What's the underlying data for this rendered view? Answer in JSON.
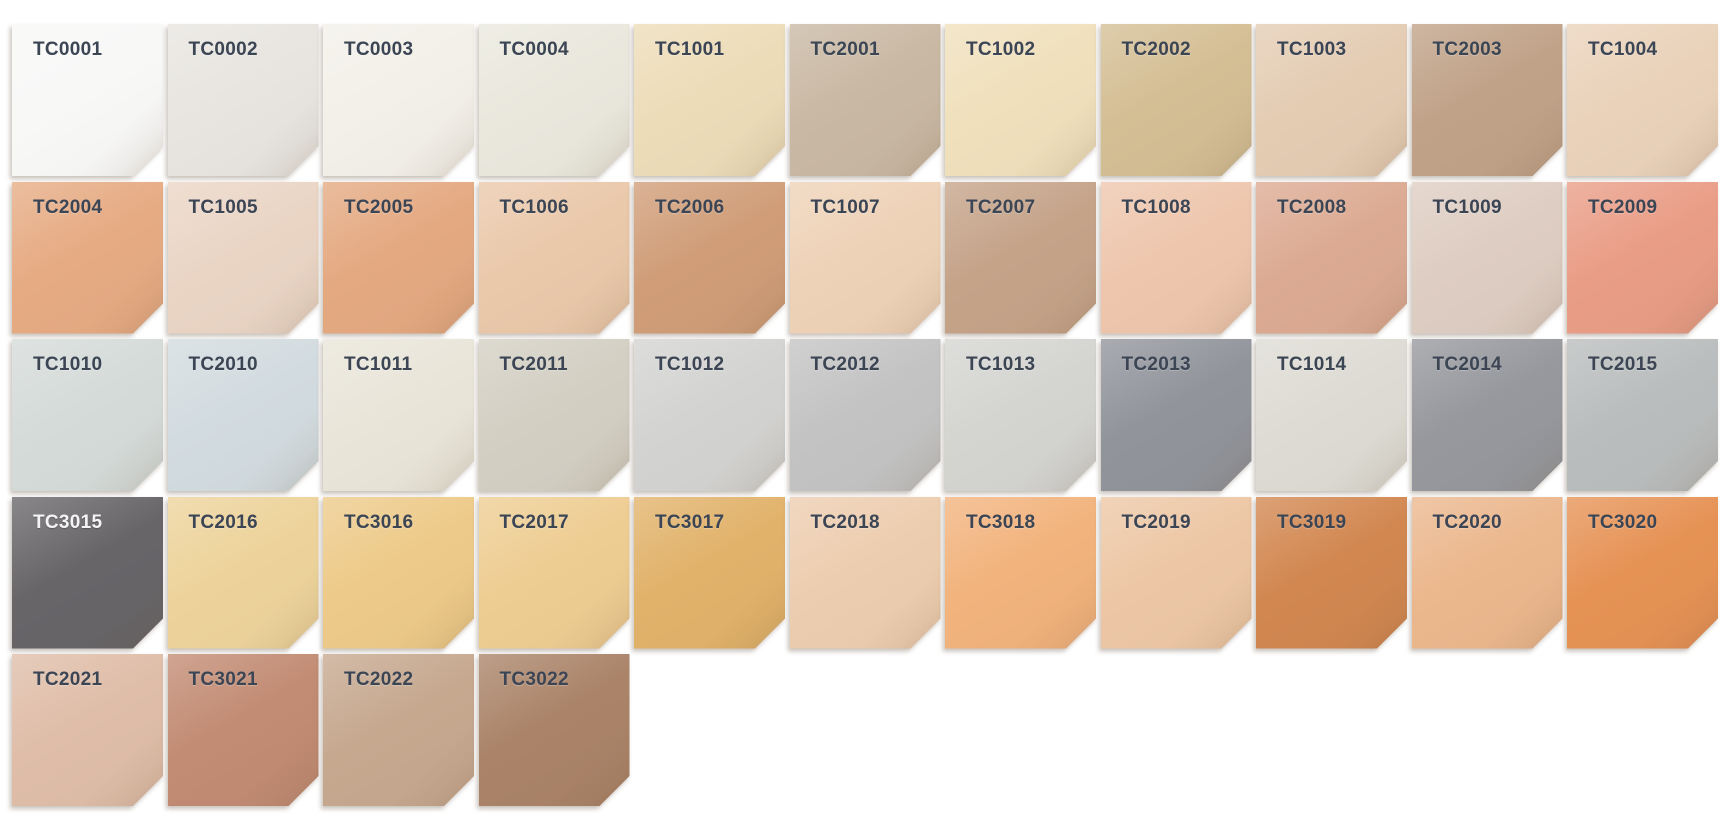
{
  "page": {
    "background_color": "#ffffff",
    "label_color": "#3c4554",
    "label_color_on_dark": "#f4f3f5"
  },
  "palette": {
    "rows": [
      [
        {
          "code": "TC0001",
          "color": "#f8f8f7",
          "light_text": false
        },
        {
          "code": "TC0002",
          "color": "#e8e5e0",
          "light_text": false
        },
        {
          "code": "TC0003",
          "color": "#f3f0e9",
          "light_text": false
        },
        {
          "code": "TC0004",
          "color": "#eae8dd",
          "light_text": false
        },
        {
          "code": "TC1001",
          "color": "#eddcb8",
          "light_text": false
        },
        {
          "code": "TC2001",
          "color": "#c9b8a3",
          "light_text": false
        },
        {
          "code": "TC1002",
          "color": "#f0e0bc",
          "light_text": false
        },
        {
          "code": "TC2002",
          "color": "#d4be94",
          "light_text": false
        },
        {
          "code": "TC1003",
          "color": "#e4ccb3",
          "light_text": false
        },
        {
          "code": "TC2003",
          "color": "#c0a288",
          "light_text": false
        },
        {
          "code": "TC1004",
          "color": "#ead2ba",
          "light_text": false
        }
      ],
      [
        {
          "code": "TC2004",
          "color": "#e6ab83",
          "light_text": false
        },
        {
          "code": "TC1005",
          "color": "#ead5c5",
          "light_text": false
        },
        {
          "code": "TC2005",
          "color": "#e4a981",
          "light_text": false
        },
        {
          "code": "TC1006",
          "color": "#eac8aa",
          "light_text": false
        },
        {
          "code": "TC2006",
          "color": "#d09d78",
          "light_text": false
        },
        {
          "code": "TC1007",
          "color": "#eed2b7",
          "light_text": false
        },
        {
          "code": "TC2007",
          "color": "#c5a389",
          "light_text": false
        },
        {
          "code": "TC1008",
          "color": "#eec6ad",
          "light_text": false
        },
        {
          "code": "TC2008",
          "color": "#dcaa92",
          "light_text": false
        },
        {
          "code": "TC1009",
          "color": "#decdc2",
          "light_text": false
        },
        {
          "code": "TC2009",
          "color": "#e99d86",
          "light_text": false
        }
      ],
      [
        {
          "code": "TC1010",
          "color": "#d5dbd9",
          "light_text": false
        },
        {
          "code": "TC2010",
          "color": "#d2dbdf",
          "light_text": false
        },
        {
          "code": "TC1011",
          "color": "#e9e5d9",
          "light_text": false
        },
        {
          "code": "TC2011",
          "color": "#d3cfc3",
          "light_text": false
        },
        {
          "code": "TC1012",
          "color": "#d3d3d1",
          "light_text": false
        },
        {
          "code": "TC2012",
          "color": "#c3c3c3",
          "light_text": false
        },
        {
          "code": "TC1013",
          "color": "#d4d4d1",
          "light_text": false
        },
        {
          "code": "TC2013",
          "color": "#91949b",
          "light_text": false
        },
        {
          "code": "TC1014",
          "color": "#dddbd3",
          "light_text": false
        },
        {
          "code": "TC2014",
          "color": "#96989d",
          "light_text": false
        },
        {
          "code": "TC2015",
          "color": "#babdbd",
          "light_text": false
        }
      ],
      [
        {
          "code": "TC3015",
          "color": "#676568",
          "light_text": true
        },
        {
          "code": "TC2016",
          "color": "#edd39b",
          "light_text": false
        },
        {
          "code": "TC3016",
          "color": "#edca89",
          "light_text": false
        },
        {
          "code": "TC2017",
          "color": "#eecd92",
          "light_text": false
        },
        {
          "code": "TC3017",
          "color": "#e1b26a",
          "light_text": false
        },
        {
          "code": "TC2018",
          "color": "#edcdaf",
          "light_text": false
        },
        {
          "code": "TC3018",
          "color": "#f2b37d",
          "light_text": false
        },
        {
          "code": "TC2019",
          "color": "#edc7a5",
          "light_text": false
        },
        {
          "code": "TC3019",
          "color": "#d28750",
          "light_text": false
        },
        {
          "code": "TC2020",
          "color": "#ebb78d",
          "light_text": false
        },
        {
          "code": "TC3020",
          "color": "#e69255",
          "light_text": false
        }
      ],
      [
        {
          "code": "TC2021",
          "color": "#dfbda8",
          "light_text": false
        },
        {
          "code": "TC3021",
          "color": "#c28b73",
          "light_text": false
        },
        {
          "code": "TC2022",
          "color": "#c6a88f",
          "light_text": false
        },
        {
          "code": "TC3022",
          "color": "#aa8368",
          "light_text": false
        }
      ]
    ]
  }
}
